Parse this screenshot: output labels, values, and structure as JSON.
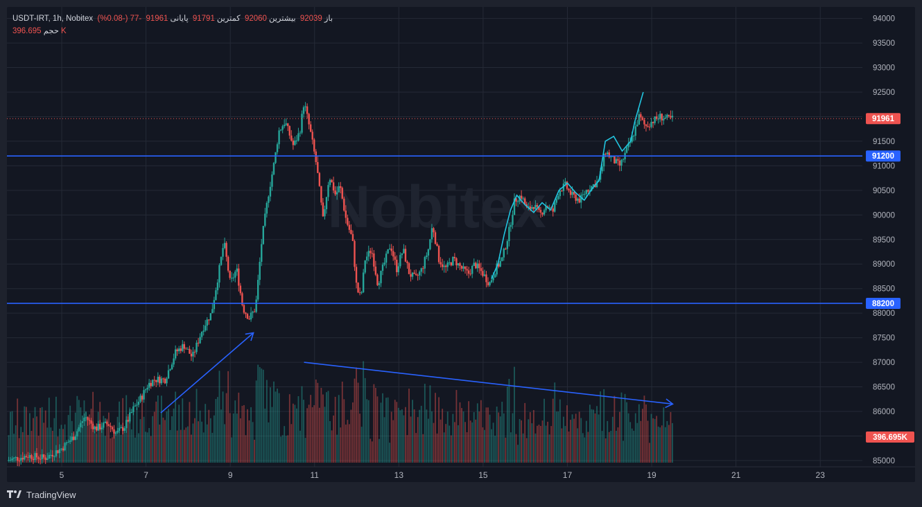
{
  "legend": {
    "symbol": "USDT-IRT, 1h, Nobitex",
    "open_label": "باز",
    "open": "92039",
    "high_label": "بیشترین",
    "high": "92060",
    "low_label": "کمترین",
    "low": "91791",
    "close_label": "پایانی",
    "close": "91961",
    "change": "-77 (-0.08%)",
    "volume_label": "حجم",
    "volume": "396.695K"
  },
  "watermark": "Nobitex",
  "branding": "TradingView",
  "colors": {
    "background": "#131722",
    "up": "#26a69a",
    "down": "#ef5350",
    "level": "#2962ff",
    "ma": "#22c5e0",
    "text": "#b2b5be"
  },
  "chart_data": {
    "type": "candlestick",
    "interval": "1h",
    "y_ticks": [
      85000,
      85500,
      86000,
      86500,
      87000,
      87500,
      88000,
      88500,
      89000,
      89500,
      90000,
      90500,
      91000,
      91500,
      92000,
      92500,
      93000,
      93500,
      94000
    ],
    "ylim": [
      84900,
      94150
    ],
    "x_ticks": [
      "5",
      "7",
      "9",
      "11",
      "13",
      "15",
      "17",
      "19",
      "21",
      "23"
    ],
    "x_tick_days": [
      5,
      7,
      9,
      11,
      13,
      15,
      17,
      19,
      21,
      23
    ],
    "xlim_days": [
      3.7,
      24.0
    ],
    "last_price": 91961,
    "last_price_label": "91961",
    "volume_label": "396.695K",
    "horizontal_levels": [
      {
        "value": 91200,
        "label": "91200"
      },
      {
        "value": 88200,
        "label": "88200"
      }
    ],
    "annotations": [
      {
        "type": "arrow",
        "from": {
          "day": 7.35,
          "price": 85970
        },
        "to": {
          "day": 9.55,
          "price": 87600
        }
      },
      {
        "type": "arrow",
        "from": {
          "day": 10.75,
          "price": 87000
        },
        "to": {
          "day": 19.5,
          "price": 86150
        }
      }
    ],
    "ma_line": [
      [
        15.2,
        88700
      ],
      [
        15.35,
        89000
      ],
      [
        15.5,
        89600
      ],
      [
        15.65,
        90100
      ],
      [
        15.8,
        90400
      ],
      [
        16.0,
        90200
      ],
      [
        16.2,
        90050
      ],
      [
        16.4,
        90250
      ],
      [
        16.6,
        90100
      ],
      [
        16.8,
        90500
      ],
      [
        17.0,
        90650
      ],
      [
        17.2,
        90450
      ],
      [
        17.4,
        90300
      ],
      [
        17.6,
        90550
      ],
      [
        17.75,
        90700
      ],
      [
        17.9,
        91500
      ],
      [
        18.1,
        91600
      ],
      [
        18.3,
        91300
      ],
      [
        18.5,
        91500
      ],
      [
        18.6,
        91900
      ],
      [
        18.8,
        92500
      ]
    ],
    "price_path": [
      [
        3.7,
        85000
      ],
      [
        4.2,
        85100
      ],
      [
        4.6,
        85050
      ],
      [
        5.0,
        85250
      ],
      [
        5.3,
        85500
      ],
      [
        5.55,
        85900
      ],
      [
        5.8,
        85650
      ],
      [
        6.1,
        85750
      ],
      [
        6.3,
        85550
      ],
      [
        6.5,
        85700
      ],
      [
        6.7,
        86050
      ],
      [
        6.9,
        86300
      ],
      [
        7.05,
        86550
      ],
      [
        7.2,
        86650
      ],
      [
        7.45,
        86650
      ],
      [
        7.7,
        87200
      ],
      [
        7.9,
        87350
      ],
      [
        8.1,
        87100
      ],
      [
        8.35,
        87700
      ],
      [
        8.55,
        88000
      ],
      [
        8.7,
        88700
      ],
      [
        8.85,
        89450
      ],
      [
        9.0,
        88600
      ],
      [
        9.15,
        88900
      ],
      [
        9.3,
        88100
      ],
      [
        9.45,
        87900
      ],
      [
        9.6,
        88100
      ],
      [
        9.75,
        89500
      ],
      [
        9.9,
        90400
      ],
      [
        10.05,
        91100
      ],
      [
        10.15,
        91700
      ],
      [
        10.3,
        91900
      ],
      [
        10.5,
        91400
      ],
      [
        10.65,
        91700
      ],
      [
        10.75,
        92300
      ],
      [
        10.9,
        91700
      ],
      [
        11.05,
        91000
      ],
      [
        11.2,
        89900
      ],
      [
        11.35,
        90800
      ],
      [
        11.5,
        90400
      ],
      [
        11.6,
        90600
      ],
      [
        11.75,
        89900
      ],
      [
        11.9,
        89500
      ],
      [
        12.0,
        88500
      ],
      [
        12.1,
        88300
      ],
      [
        12.2,
        89100
      ],
      [
        12.35,
        89300
      ],
      [
        12.5,
        88600
      ],
      [
        12.65,
        89000
      ],
      [
        12.8,
        89400
      ],
      [
        12.95,
        88900
      ],
      [
        13.1,
        89300
      ],
      [
        13.25,
        88800
      ],
      [
        13.4,
        88700
      ],
      [
        13.55,
        88900
      ],
      [
        13.7,
        89300
      ],
      [
        13.8,
        89800
      ],
      [
        13.95,
        89100
      ],
      [
        14.1,
        88900
      ],
      [
        14.3,
        89100
      ],
      [
        14.5,
        88900
      ],
      [
        14.65,
        88800
      ],
      [
        14.8,
        89000
      ],
      [
        15.0,
        88800
      ],
      [
        15.15,
        88600
      ],
      [
        15.3,
        88900
      ],
      [
        15.45,
        89100
      ],
      [
        15.6,
        89600
      ],
      [
        15.75,
        90300
      ],
      [
        15.9,
        90400
      ],
      [
        16.05,
        90100
      ],
      [
        16.2,
        90200
      ],
      [
        16.35,
        90000
      ],
      [
        16.5,
        90200
      ],
      [
        16.65,
        90050
      ],
      [
        16.8,
        90500
      ],
      [
        16.95,
        90600
      ],
      [
        17.1,
        90400
      ],
      [
        17.3,
        90300
      ],
      [
        17.45,
        90500
      ],
      [
        17.6,
        90600
      ],
      [
        17.75,
        90700
      ],
      [
        17.9,
        91300
      ],
      [
        18.1,
        91100
      ],
      [
        18.25,
        91000
      ],
      [
        18.4,
        91300
      ],
      [
        18.55,
        91600
      ],
      [
        18.7,
        92000
      ],
      [
        18.85,
        91800
      ],
      [
        19.0,
        91900
      ],
      [
        19.2,
        92000
      ],
      [
        19.4,
        91950
      ],
      [
        19.5,
        91961
      ]
    ]
  }
}
